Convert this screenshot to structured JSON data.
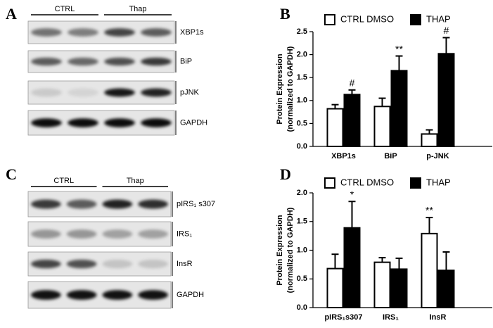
{
  "panels": [
    "A",
    "B",
    "C",
    "D"
  ],
  "blots": [
    {
      "groups": [
        "CTRL",
        "Thap"
      ],
      "rows": [
        "XBP1s",
        "BiP",
        "pJNK",
        "GAPDH"
      ]
    },
    {
      "groups": [
        "CTRL",
        "Thap"
      ],
      "rows": [
        "pIRS₁ s307",
        "IRS₁",
        "InsR",
        "GAPDH"
      ]
    }
  ],
  "chart_data": [
    {
      "type": "bar",
      "ylabel": [
        "Protein Expression",
        "(normalized to GAPDH)"
      ],
      "categories": [
        "XBP1s",
        "BiP",
        "p-JNK"
      ],
      "series": [
        {
          "name": "CTRL DMSO",
          "color": "#ffffff",
          "values": [
            0.82,
            0.87,
            0.27
          ],
          "errors": [
            0.09,
            0.18,
            0.09
          ],
          "significance": [
            null,
            null,
            null
          ]
        },
        {
          "name": "THAP",
          "color": "#000000",
          "values": [
            1.13,
            1.65,
            2.02
          ],
          "errors": [
            0.1,
            0.32,
            0.35
          ],
          "significance": [
            "#",
            "**",
            "#"
          ]
        }
      ],
      "ylim": [
        0,
        2.5
      ],
      "yticks": [
        {
          "value": 0,
          "label": "0.0"
        },
        0.5,
        {
          "value": 1,
          "label": "1.0"
        },
        1.5,
        {
          "value": 2,
          "label": "2.0"
        },
        2.5
      ],
      "legend": "top"
    },
    {
      "type": "bar",
      "ylabel": [
        "Protein Expression",
        "(normalized to GAPDH)"
      ],
      "categories": [
        "pIRS₁s307",
        "IRS₁",
        "InsR"
      ],
      "series": [
        {
          "name": "CTRL DMSO",
          "color": "#ffffff",
          "values": [
            0.68,
            0.79,
            1.29
          ],
          "errors": [
            0.25,
            0.08,
            0.28
          ],
          "significance": [
            null,
            null,
            "**"
          ]
        },
        {
          "name": "THAP",
          "color": "#000000",
          "values": [
            1.39,
            0.67,
            0.65
          ],
          "errors": [
            0.46,
            0.19,
            0.32
          ],
          "significance": [
            "*",
            null,
            null
          ]
        }
      ],
      "ylim": [
        0,
        2
      ],
      "yticks": [
        {
          "value": 0,
          "label": "0.0"
        },
        0.5,
        {
          "value": 1,
          "label": "1.0"
        },
        1.5,
        {
          "value": 2,
          "label": "2.0"
        }
      ],
      "legend": "top"
    }
  ]
}
